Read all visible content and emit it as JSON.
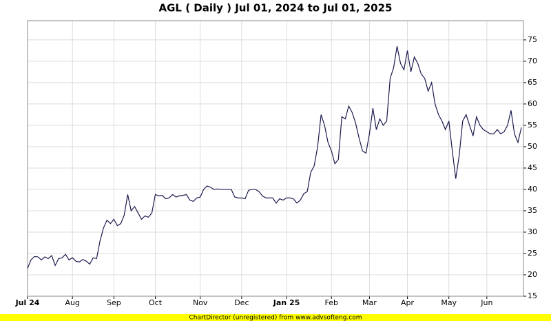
{
  "chart_data": {
    "type": "line",
    "title": "AGL ( Daily ) Jul 01, 2024 to Jul 01, 2025",
    "footer": "ChartDirector (unregistered) from www.advsofteng.com",
    "color": "#1a1a4e",
    "values": [
      21.5,
      23.5,
      24.3,
      24.2,
      23.5,
      24.2,
      23.8,
      24.5,
      22.2,
      23.8,
      24,
      24.8,
      23.5,
      24,
      23.2,
      23,
      23.6,
      23.2,
      22.5,
      24,
      23.8,
      28,
      31,
      32.8,
      32,
      33,
      31.5,
      32,
      34,
      38.8,
      35,
      36,
      34.5,
      33,
      33.8,
      33.5,
      34.5,
      38.8,
      38.5,
      38.6,
      37.8,
      38,
      38.8,
      38.2,
      38.5,
      38.6,
      38.8,
      37.5,
      37.2,
      38,
      38.2,
      40,
      40.8,
      40.5,
      40,
      40.1,
      40,
      40,
      40,
      40,
      38.2,
      38,
      38,
      37.8,
      39.8,
      40,
      40,
      39.5,
      38.5,
      38,
      38,
      38,
      36.8,
      37.8,
      37.5,
      38,
      38,
      37.8,
      36.8,
      37.5,
      39,
      39.5,
      44,
      45.5,
      50,
      57.5,
      55,
      51,
      49,
      46,
      47,
      57,
      56.5,
      59.5,
      58,
      55.5,
      52,
      49,
      48.5,
      53,
      59,
      54,
      56.5,
      55,
      56,
      66,
      68.5,
      73.5,
      69.5,
      68,
      72.5,
      67.5,
      71,
      69.5,
      67,
      66,
      63,
      65,
      60,
      57.5,
      56,
      54,
      56,
      49,
      42.5,
      48,
      56,
      57.5,
      55,
      52.5,
      57,
      55,
      54,
      53.5,
      53,
      53,
      54,
      53,
      53.5,
      55,
      58.5,
      53,
      51,
      54.5
    ],
    "xlim": [
      0,
      143
    ],
    "xticks": [
      {
        "value": 0,
        "label": "Jul 24"
      },
      {
        "value": 13,
        "label": "Aug"
      },
      {
        "value": 25,
        "label": "Sep"
      },
      {
        "value": 37,
        "label": "Oct"
      },
      {
        "value": 50,
        "label": "Nov"
      },
      {
        "value": 62,
        "label": "Dec"
      },
      {
        "value": 75,
        "label": "Jan 25"
      },
      {
        "value": 88,
        "label": "Feb"
      },
      {
        "value": 99,
        "label": "Mar"
      },
      {
        "value": 110,
        "label": "Apr"
      },
      {
        "value": 122,
        "label": "May"
      },
      {
        "value": 133,
        "label": "Jun"
      }
    ],
    "ylim": [
      15,
      79.5
    ],
    "yticks": [
      15,
      20,
      25,
      30,
      35,
      40,
      45,
      50,
      55,
      60,
      65,
      70,
      75
    ],
    "grid": true
  }
}
